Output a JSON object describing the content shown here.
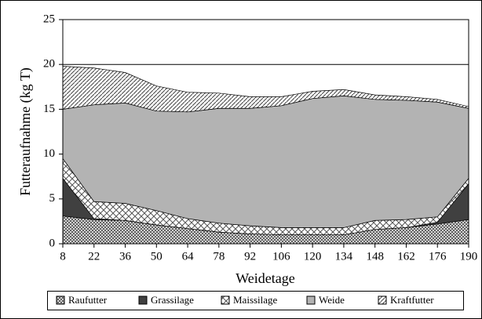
{
  "chart_data": {
    "type": "stacked_area",
    "x_label": "Weidetage",
    "y_label": "Futteraufnahme (kg T)",
    "x": [
      8,
      22,
      36,
      50,
      64,
      78,
      92,
      106,
      120,
      134,
      148,
      162,
      176,
      190
    ],
    "series": [
      {
        "name": "Raufutter",
        "color": "#9a9a9a",
        "values": [
          3.1,
          2.7,
          2.6,
          2.1,
          1.7,
          1.3,
          1.1,
          1.0,
          1.0,
          1.0,
          1.6,
          1.8,
          2.2,
          2.7
        ]
      },
      {
        "name": "Grassilage",
        "color": "#404040",
        "values": [
          4.2,
          0.1,
          0,
          0,
          0,
          0,
          0,
          0,
          0,
          0,
          0,
          0,
          0.2,
          4.0
        ]
      },
      {
        "name": "Maissilage",
        "color": "#ffffff",
        "values": [
          2.2,
          1.9,
          1.9,
          1.6,
          1.1,
          1.0,
          0.9,
          0.8,
          0.8,
          0.8,
          1.0,
          0.9,
          0.6,
          0.6
        ]
      },
      {
        "name": "Weide",
        "color": "#b3b3b3",
        "values": [
          5.5,
          10.8,
          11.2,
          11.1,
          11.9,
          12.8,
          13.1,
          13.6,
          14.4,
          14.7,
          13.5,
          13.3,
          12.8,
          7.8
        ]
      },
      {
        "name": "Kraftfutter",
        "color": "#ffffff",
        "values": [
          4.8,
          4.1,
          3.4,
          2.8,
          2.2,
          1.7,
          1.3,
          1.0,
          0.8,
          0.7,
          0.5,
          0.4,
          0.3,
          0.2
        ]
      }
    ],
    "xlim": [
      8,
      190
    ],
    "xticks": [
      8,
      22,
      36,
      50,
      64,
      78,
      92,
      106,
      120,
      134,
      148,
      162,
      176,
      190
    ],
    "ylim": [
      0,
      25
    ],
    "yticks": [
      0,
      5,
      10,
      15,
      20,
      25
    ],
    "hlines": [
      20
    ]
  }
}
